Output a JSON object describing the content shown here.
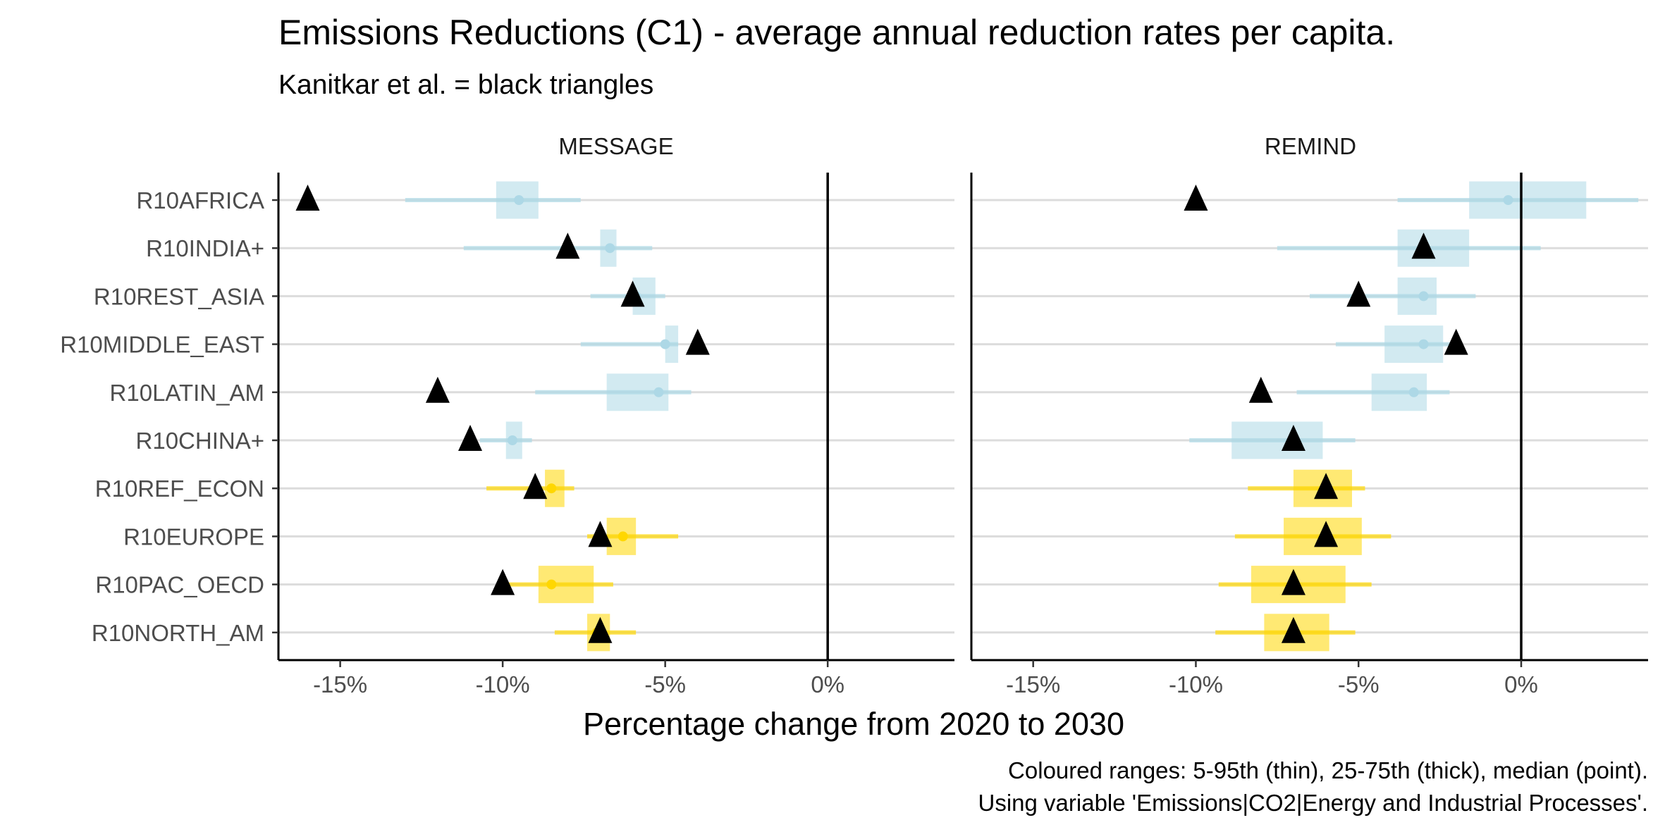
{
  "chart_data": {
    "type": "dot_range",
    "title": "Emissions Reductions (C1) - average annual reduction rates per capita.",
    "subtitle": "Kanitkar et al. = black triangles",
    "xlabel": "Percentage change from 2020 to 2030",
    "caption_lines": [
      "Coloured ranges: 5-95th (thin), 25-75th (thick), median (point).",
      "Using variable 'Emissions|CO2|Energy and Industrial Processes'."
    ],
    "xlim": [
      -16.9,
      3.9
    ],
    "x_ticks": [
      -15,
      -10,
      -5,
      0
    ],
    "x_tick_labels": [
      "-15%",
      "-10%",
      "-5%",
      "0%"
    ],
    "reference_line": 0,
    "categories": [
      "R10AFRICA",
      "R10INDIA+",
      "R10REST_ASIA",
      "R10MIDDLE_EAST",
      "R10LATIN_AM",
      "R10CHINA+",
      "R10REF_ECON",
      "R10EUROPE",
      "R10PAC_OECD",
      "R10NORTH_AM"
    ],
    "colors": {
      "blue": "#add8e6",
      "yellow": "#ffd700",
      "gridline": "#dcdcdc",
      "axis": "#000000",
      "triangle": "#000000"
    },
    "panels": [
      {
        "name": "MESSAGE",
        "rows": [
          {
            "region": "R10AFRICA",
            "color": "blue",
            "p5": -13.0,
            "p25": -10.2,
            "median": -9.5,
            "p75": -8.9,
            "p95": -7.6,
            "kanitkar": -16.0
          },
          {
            "region": "R10INDIA+",
            "color": "blue",
            "p5": -11.2,
            "p25": -7.0,
            "median": -6.7,
            "p75": -6.5,
            "p95": -5.4,
            "kanitkar": -8.0
          },
          {
            "region": "R10REST_ASIA",
            "color": "blue",
            "p5": -7.3,
            "p25": -6.0,
            "median": -5.9,
            "p75": -5.3,
            "p95": -5.0,
            "kanitkar": -6.0
          },
          {
            "region": "R10MIDDLE_EAST",
            "color": "blue",
            "p5": -7.6,
            "p25": -5.0,
            "median": -5.0,
            "p75": -4.6,
            "p95": -4.6,
            "kanitkar": -4.0
          },
          {
            "region": "R10LATIN_AM",
            "color": "blue",
            "p5": -9.0,
            "p25": -6.8,
            "median": -5.2,
            "p75": -4.9,
            "p95": -4.2,
            "kanitkar": -12.0
          },
          {
            "region": "R10CHINA+",
            "color": "blue",
            "p5": -10.7,
            "p25": -9.9,
            "median": -9.7,
            "p75": -9.4,
            "p95": -9.1,
            "kanitkar": -11.0
          },
          {
            "region": "R10REF_ECON",
            "color": "yellow",
            "p5": -10.5,
            "p25": -8.7,
            "median": -8.5,
            "p75": -8.1,
            "p95": -7.8,
            "kanitkar": -9.0
          },
          {
            "region": "R10EUROPE",
            "color": "yellow",
            "p5": -7.4,
            "p25": -6.8,
            "median": -6.3,
            "p75": -5.9,
            "p95": -4.6,
            "kanitkar": -7.0
          },
          {
            "region": "R10PAC_OECD",
            "color": "yellow",
            "p5": -10.0,
            "p25": -8.9,
            "median": -8.5,
            "p75": -7.2,
            "p95": -6.6,
            "kanitkar": -10.0
          },
          {
            "region": "R10NORTH_AM",
            "color": "yellow",
            "p5": -8.4,
            "p25": -7.4,
            "median": -7.1,
            "p75": -6.7,
            "p95": -5.9,
            "kanitkar": -7.0
          }
        ]
      },
      {
        "name": "REMIND",
        "rows": [
          {
            "region": "R10AFRICA",
            "color": "blue",
            "p5": -3.8,
            "p25": -1.6,
            "median": -0.4,
            "p75": 2.0,
            "p95": 3.6,
            "kanitkar": -10.0
          },
          {
            "region": "R10INDIA+",
            "color": "blue",
            "p5": -7.5,
            "p25": -3.8,
            "median": -3.0,
            "p75": -1.6,
            "p95": 0.6,
            "kanitkar": -3.0
          },
          {
            "region": "R10REST_ASIA",
            "color": "blue",
            "p5": -6.5,
            "p25": -3.8,
            "median": -3.0,
            "p75": -2.6,
            "p95": -1.4,
            "kanitkar": -5.0
          },
          {
            "region": "R10MIDDLE_EAST",
            "color": "blue",
            "p5": -5.7,
            "p25": -4.2,
            "median": -3.0,
            "p75": -2.4,
            "p95": -2.0,
            "kanitkar": -2.0
          },
          {
            "region": "R10LATIN_AM",
            "color": "blue",
            "p5": -6.9,
            "p25": -4.6,
            "median": -3.3,
            "p75": -2.9,
            "p95": -2.2,
            "kanitkar": -8.0
          },
          {
            "region": "R10CHINA+",
            "color": "blue",
            "p5": -10.2,
            "p25": -8.9,
            "median": -7.0,
            "p75": -6.1,
            "p95": -5.1,
            "kanitkar": -7.0
          },
          {
            "region": "R10REF_ECON",
            "color": "yellow",
            "p5": -8.4,
            "p25": -7.0,
            "median": -6.0,
            "p75": -5.2,
            "p95": -4.8,
            "kanitkar": -6.0
          },
          {
            "region": "R10EUROPE",
            "color": "yellow",
            "p5": -8.8,
            "p25": -7.3,
            "median": -6.0,
            "p75": -4.9,
            "p95": -4.0,
            "kanitkar": -6.0
          },
          {
            "region": "R10PAC_OECD",
            "color": "yellow",
            "p5": -9.3,
            "p25": -8.3,
            "median": -7.0,
            "p75": -5.4,
            "p95": -4.6,
            "kanitkar": -7.0
          },
          {
            "region": "R10NORTH_AM",
            "color": "yellow",
            "p5": -9.4,
            "p25": -7.9,
            "median": -7.0,
            "p75": -5.9,
            "p95": -5.1,
            "kanitkar": -7.0
          }
        ]
      }
    ]
  }
}
